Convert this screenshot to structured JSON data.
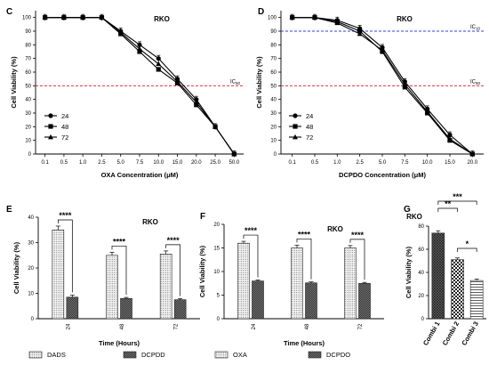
{
  "chart_data": [
    {
      "panel": "C",
      "type": "line",
      "title": "RKO",
      "xlabel": "OXA Concentration (μM)",
      "ylabel": "Cell Viability (%)",
      "categories": [
        "0.1",
        "0.5",
        "1.0",
        "2.5",
        "5.0",
        "7.5",
        "10.0",
        "15.0",
        "20.0",
        "25.0",
        "50.0"
      ],
      "ylim": [
        0,
        105
      ],
      "yticks": [
        "0",
        "10",
        "20",
        "30",
        "40",
        "50",
        "60",
        "70",
        "80",
        "90",
        "100"
      ],
      "reference_lines": [
        {
          "label": "IC",
          "sub": "50",
          "value": 50,
          "color": "#e8303a"
        }
      ],
      "legend_position": "bottom-left",
      "series": [
        {
          "name": "24",
          "marker": "circle",
          "values": [
            100,
            100,
            100,
            100,
            90,
            80,
            70,
            55,
            40,
            20,
            0
          ]
        },
        {
          "name": "48",
          "marker": "square",
          "values": [
            100,
            100,
            100,
            100,
            88,
            75,
            62,
            52,
            36,
            20,
            0
          ]
        },
        {
          "name": "72",
          "marker": "triangle",
          "values": [
            100,
            100,
            100,
            100,
            89,
            77,
            66,
            53,
            38,
            20,
            0
          ]
        }
      ]
    },
    {
      "panel": "D",
      "type": "line",
      "title": "RKO",
      "xlabel": "DCPDO Concentration (μM)",
      "ylabel": "Cell Viability (%)",
      "categories": [
        "0.1",
        "0.5",
        "1.0",
        "2.5",
        "5.0",
        "7.5",
        "10.0",
        "15.0",
        "20.0"
      ],
      "ylim": [
        0,
        105
      ],
      "yticks": [
        "0",
        "10",
        "20",
        "30",
        "40",
        "50",
        "60",
        "70",
        "80",
        "90",
        "100"
      ],
      "reference_lines": [
        {
          "label": "IC",
          "sub": "10",
          "value": 90,
          "color": "#3040d8"
        },
        {
          "label": "IC",
          "sub": "50",
          "value": 50,
          "color": "#e8303a"
        }
      ],
      "legend_position": "bottom-left",
      "series": [
        {
          "name": "24",
          "marker": "circle",
          "values": [
            100,
            100,
            98,
            92,
            78,
            53,
            33,
            14,
            0
          ]
        },
        {
          "name": "48",
          "marker": "square",
          "values": [
            100,
            100,
            97,
            90,
            75,
            49,
            30,
            10,
            0
          ]
        },
        {
          "name": "72",
          "marker": "triangle",
          "values": [
            100,
            100,
            96,
            88,
            76,
            51,
            31,
            11,
            0
          ]
        }
      ]
    },
    {
      "panel": "E",
      "type": "bar",
      "title": "RKO",
      "xlabel": "Time (Hours)",
      "ylabel": "Cell Viability (%)",
      "categories": [
        "24",
        "48",
        "72"
      ],
      "ylim": [
        0,
        40
      ],
      "yticks": [
        "0",
        "10",
        "20",
        "30",
        "40"
      ],
      "legend_position": "bottom",
      "series": [
        {
          "name": "DADS",
          "pattern": "dots",
          "values": [
            35,
            25,
            25.5
          ],
          "errors": [
            1.5,
            1.2,
            1.2
          ]
        },
        {
          "name": "DCPDD",
          "pattern": "dense",
          "values": [
            8.5,
            8,
            7.5
          ],
          "errors": [
            0.8,
            0.4,
            0.4
          ]
        }
      ],
      "significance": [
        {
          "category": "24",
          "label": "****"
        },
        {
          "category": "48",
          "label": "****"
        },
        {
          "category": "72",
          "label": "****"
        }
      ]
    },
    {
      "panel": "F",
      "type": "bar",
      "title": "RKO",
      "xlabel": "Time (Hours)",
      "ylabel": "Cell Viability (%)",
      "categories": [
        "24",
        "48",
        "72"
      ],
      "ylim": [
        0,
        20
      ],
      "yticks": [
        "0",
        "5",
        "10",
        "15",
        "20"
      ],
      "legend_position": "bottom",
      "series": [
        {
          "name": "OXA",
          "pattern": "dots",
          "values": [
            16,
            15,
            15
          ],
          "errors": [
            0.4,
            0.6,
            0.5
          ]
        },
        {
          "name": "DCPDO",
          "pattern": "dense",
          "values": [
            8,
            7.6,
            7.5
          ],
          "errors": [
            0.2,
            0.2,
            0.2
          ]
        }
      ],
      "significance": [
        {
          "category": "24",
          "label": "****"
        },
        {
          "category": "48",
          "label": "****"
        },
        {
          "category": "72",
          "label": "****"
        }
      ]
    },
    {
      "panel": "G",
      "type": "bar",
      "title": "RKO",
      "xlabel": "",
      "ylabel": "Cell Viability (%)",
      "categories": [
        "Combi 1",
        "Combi 2",
        "Combi 3"
      ],
      "ylim": [
        0,
        80
      ],
      "yticks": [
        "0",
        "20",
        "40",
        "60",
        "80"
      ],
      "series": [
        {
          "name": "",
          "patterns": [
            "cross",
            "check",
            "lines"
          ],
          "values": [
            74,
            51,
            33
          ],
          "errors": [
            2,
            1.5,
            1.2
          ]
        }
      ],
      "significance": [
        {
          "from": "Combi 1",
          "to": "Combi 2",
          "label": "**"
        },
        {
          "from": "Combi 1",
          "to": "Combi 3",
          "label": "***"
        },
        {
          "from": "Combi 2",
          "to": "Combi 3",
          "label": "*"
        }
      ]
    }
  ]
}
